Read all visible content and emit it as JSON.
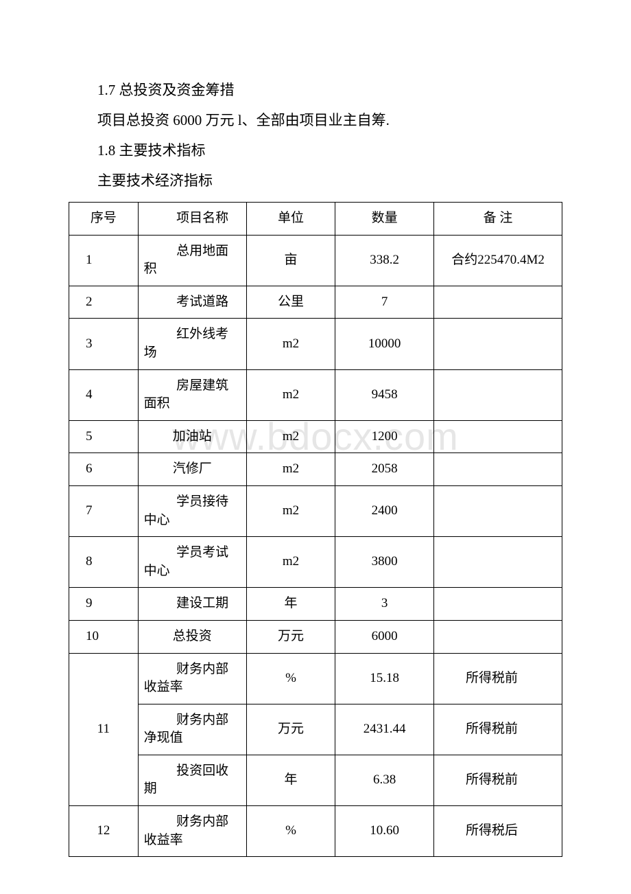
{
  "watermark": "www.bdocx.com",
  "paragraphs": {
    "p1": "1.7 总投资及资金筹措",
    "p2": "项目总投资 6000 万元 l、全部由项目业主自筹.",
    "p3": "1.8 主要技术指标",
    "p4": "主要技术经济指标"
  },
  "table": {
    "columns": [
      "序号",
      "项目名称",
      "单位",
      "数量",
      "备 注"
    ],
    "rows": [
      {
        "seq": "1",
        "name": "总用地面积",
        "unit": "亩",
        "qty": "338.2",
        "note": "合约225470.4M2",
        "noteCenter": true
      },
      {
        "seq": "2",
        "name": "考试道路",
        "unit": "公里",
        "qty": "7",
        "note": ""
      },
      {
        "seq": "3",
        "name": "红外线考场",
        "unit": "m2",
        "qty": "10000",
        "note": ""
      },
      {
        "seq": "4",
        "name": "房屋建筑面积",
        "unit": "m2",
        "qty": "9458",
        "note": ""
      },
      {
        "seq": "5",
        "name": "加油站",
        "unit": "m2",
        "qty": "1200",
        "note": ""
      },
      {
        "seq": "6",
        "name": "汽修厂",
        "unit": "m2",
        "qty": "2058",
        "note": ""
      },
      {
        "seq": "7",
        "name": "学员接待中心",
        "unit": "m2",
        "qty": "2400",
        "note": ""
      },
      {
        "seq": "8",
        "name": "学员考试中心",
        "unit": "m2",
        "qty": "3800",
        "note": ""
      },
      {
        "seq": "9",
        "name": "建设工期",
        "unit": "年",
        "qty": "3",
        "note": ""
      },
      {
        "seq": "10",
        "name": "总投资",
        "unit": "万元",
        "qty": "6000",
        "note": ""
      },
      {
        "seq": "11",
        "name": "财务内部收益率",
        "unit": "%",
        "qty": "15.18",
        "note": "所得税前",
        "rowspan": 3
      },
      {
        "seq": "",
        "name": "财务内部净现值",
        "unit": "万元",
        "qty": "2431.44",
        "note": "所得税前"
      },
      {
        "seq": "",
        "name": "投资回收期",
        "unit": "年",
        "qty": "6.38",
        "note": "所得税前"
      },
      {
        "seq": "12",
        "name": "财务内部收益率",
        "unit": "%",
        "qty": "10.60",
        "note": "所得税后"
      }
    ]
  }
}
